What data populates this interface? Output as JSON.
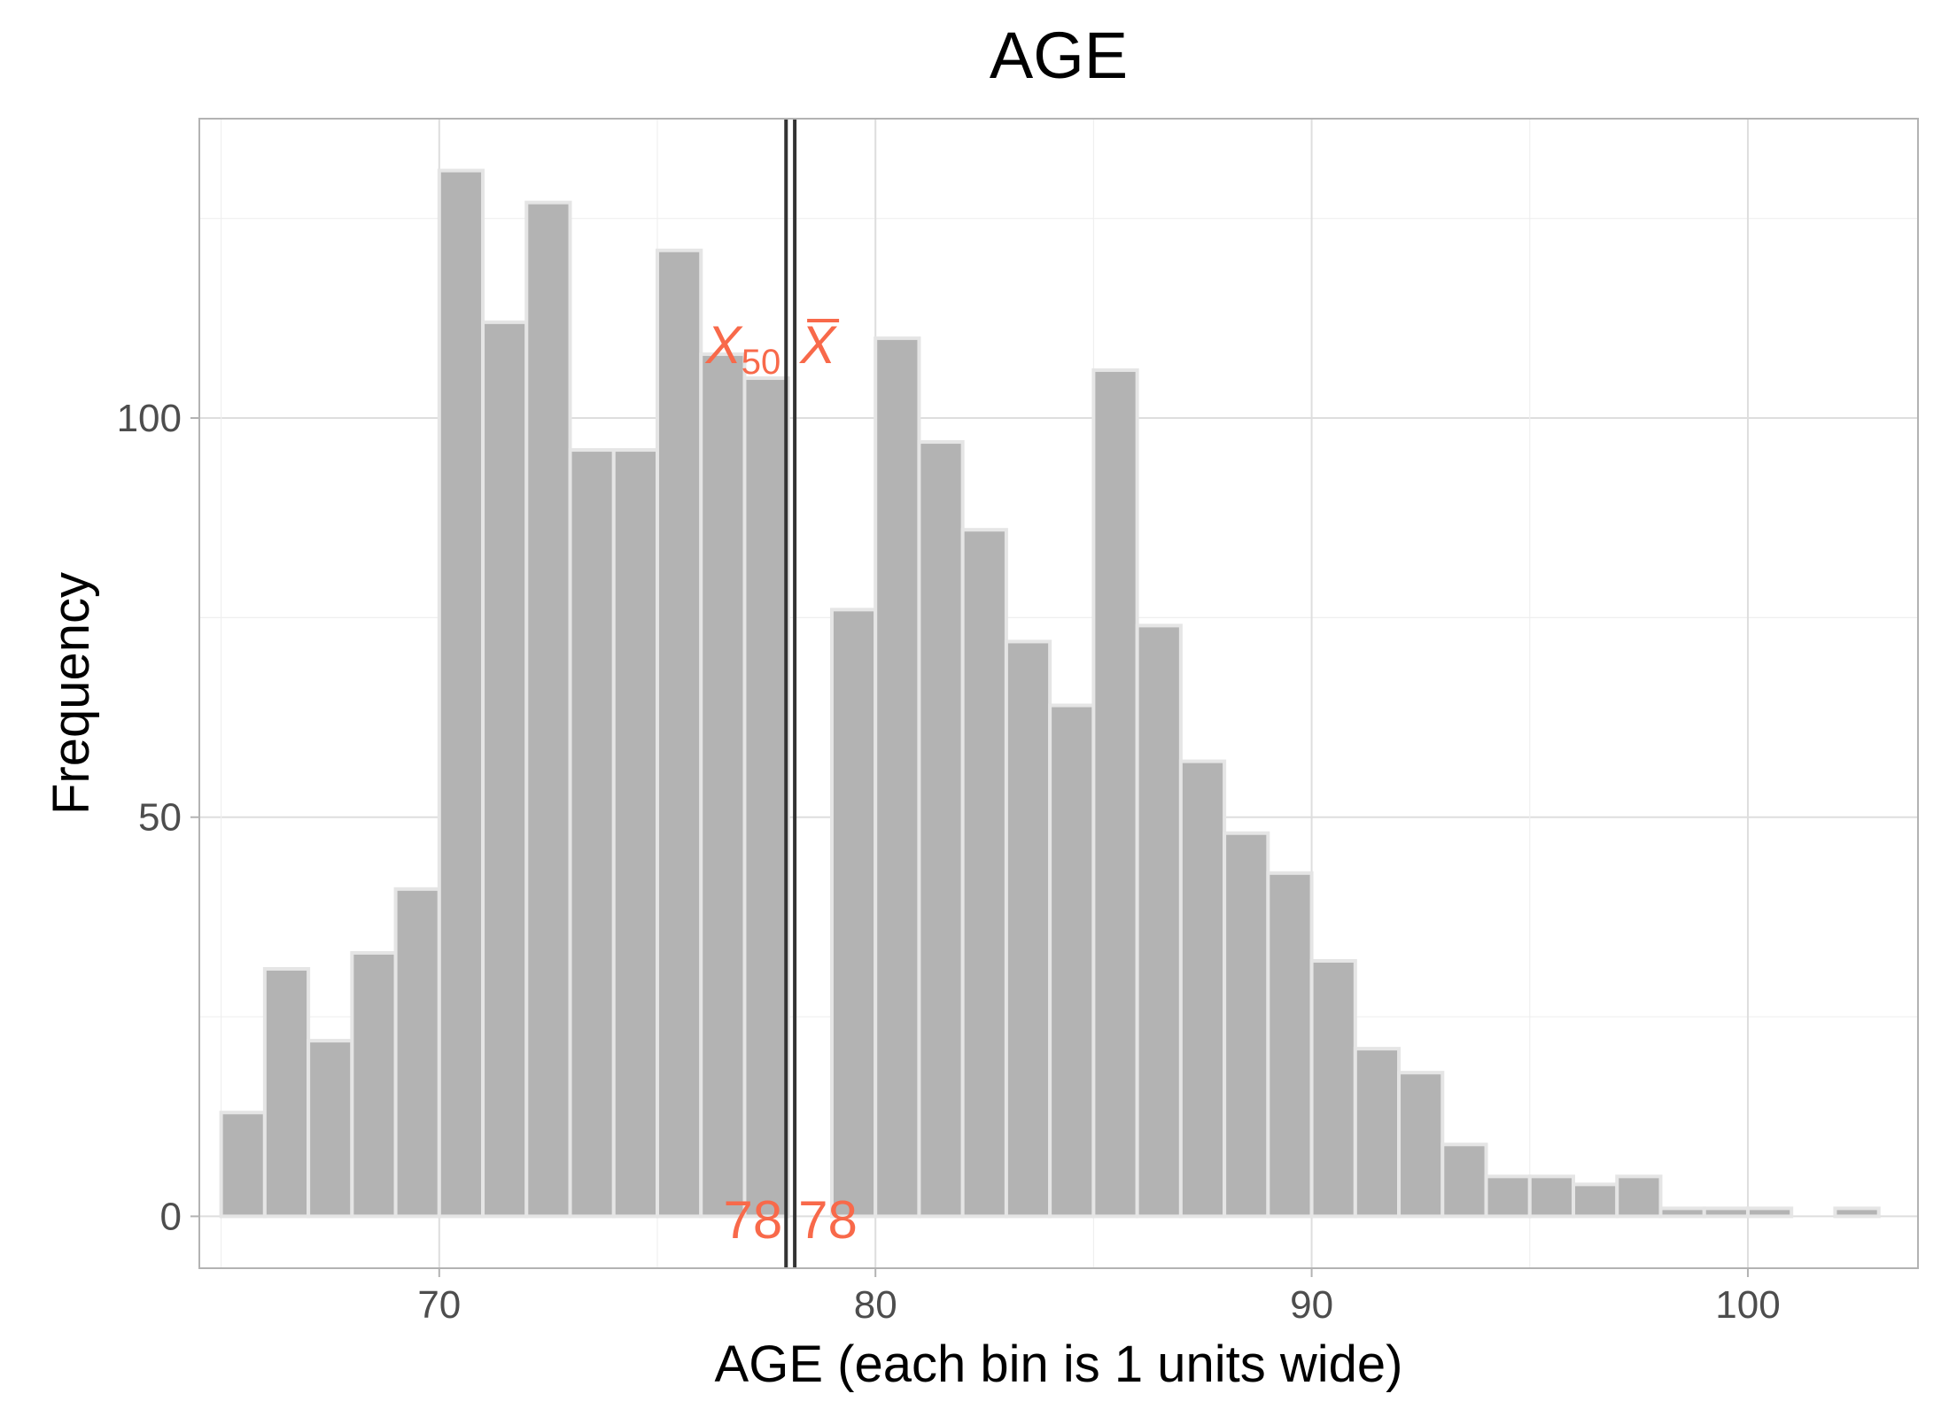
{
  "chart_data": {
    "type": "bar",
    "title": "AGE",
    "xlabel": "AGE (each bin is 1 units wide)",
    "ylabel": "Frequency",
    "bin_width": 1,
    "bins_left_edges": [
      65,
      66,
      67,
      68,
      69,
      70,
      71,
      72,
      73,
      74,
      75,
      76,
      77,
      78,
      79,
      80,
      81,
      82,
      83,
      84,
      85,
      86,
      87,
      88,
      89,
      90,
      91,
      92,
      93,
      94,
      95,
      96,
      97,
      98,
      99,
      100,
      101,
      102
    ],
    "values": [
      13,
      31,
      22,
      33,
      41,
      131,
      112,
      127,
      96,
      96,
      121,
      108,
      105,
      0,
      76,
      110,
      97,
      86,
      72,
      64,
      106,
      74,
      57,
      48,
      43,
      32,
      21,
      18,
      9,
      5,
      5,
      4,
      5,
      1,
      1,
      1,
      0,
      1
    ],
    "xlim": [
      64.5,
      103.9
    ],
    "ylim": [
      -6.5,
      137.5
    ],
    "x_ticks": [
      70,
      80,
      90,
      100
    ],
    "x_tick_labels": [
      "70",
      "80",
      "90",
      "100"
    ],
    "y_ticks": [
      0,
      50,
      100
    ],
    "y_tick_labels": [
      "0",
      "50",
      "100"
    ],
    "grid": true,
    "vlines": [
      {
        "x": 77.95,
        "name": "median"
      },
      {
        "x": 78.15,
        "name": "mean"
      }
    ],
    "annotations": {
      "median_symbol": "X",
      "median_subscript": "50",
      "mean_symbol": "X",
      "median_value": "78",
      "mean_value": "78"
    },
    "colors": {
      "bar_fill": "#b3b3b3",
      "bar_stroke": "#e5e5e5",
      "annotation": "#f8694a",
      "vline": "#333333",
      "grid": "#dedede",
      "panel_border": "#b3b3b3"
    }
  }
}
